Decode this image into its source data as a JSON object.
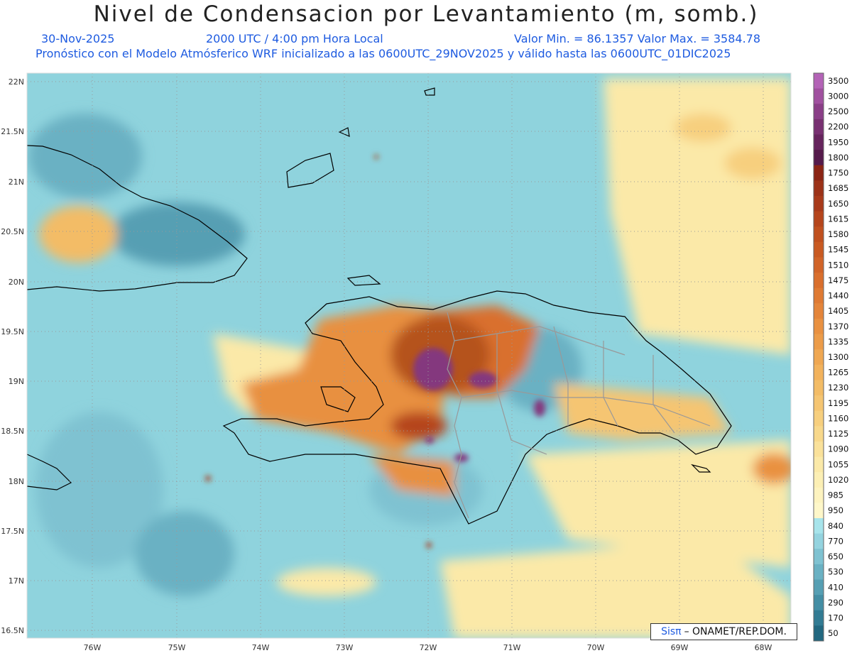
{
  "title": "Nivel de Condensacion por Levantamiento (m, somb.)",
  "header": {
    "date": "30-Nov-2025",
    "time": "2000 UTC / 4:00 pm Hora Local",
    "minmax": "Valor Min. = 86.1357  Valor Max. = 3584.78",
    "subtitle": "Pronóstico con el Modelo Atmósferico WRF inicializado a las 0600UTC_29NOV2025 y válido hasta las  0600UTC_01DIC2025"
  },
  "map": {
    "lat_labels": [
      "22N",
      "21.5N",
      "21N",
      "20.5N",
      "20N",
      "19.5N",
      "19N",
      "18.5N",
      "18N",
      "17.5N",
      "17N",
      "16.5N"
    ],
    "lon_labels": [
      "76W",
      "75W",
      "74W",
      "73W",
      "72W",
      "71W",
      "70W",
      "69W",
      "68W"
    ]
  },
  "colorbar": {
    "labels": [
      "3500",
      "3000",
      "2500",
      "2200",
      "1950",
      "1800",
      "1750",
      "1685",
      "1650",
      "1615",
      "1580",
      "1545",
      "1510",
      "1475",
      "1440",
      "1405",
      "1370",
      "1335",
      "1300",
      "1265",
      "1230",
      "1195",
      "1160",
      "1125",
      "1090",
      "1055",
      "1020",
      "985",
      "950",
      "840",
      "770",
      "650",
      "530",
      "410",
      "290",
      "170",
      "50"
    ],
    "colors": [
      "#b363b6",
      "#a0509f",
      "#8a3e87",
      "#783071",
      "#66245d",
      "#551a4b",
      "#8b2414",
      "#9c3218",
      "#a83a1a",
      "#b5451c",
      "#c0501f",
      "#c95a22",
      "#d16428",
      "#d96f2d",
      "#df7a33",
      "#e4853a",
      "#e99141",
      "#ec9c49",
      "#efa752",
      "#f2b25c",
      "#f3bc66",
      "#f5c572",
      "#f7cf7e",
      "#f8d88b",
      "#fae19a",
      "#fbe9a8",
      "#fcefb4",
      "#fdf3bf",
      "#fef7c9",
      "#a7e4eb",
      "#94d3df",
      "#7fc2d1",
      "#6ab1c3",
      "#569fb3",
      "#448ea4",
      "#327b93",
      "#226880"
    ]
  },
  "credit": {
    "sis": "Sisπ",
    "text": "– ONAMET/REP.DOM."
  },
  "colors": {
    "sea_base": "#8fd3dd",
    "yellow": "#fbe9a8",
    "orange": "#e8903f",
    "brown": "#b5521f",
    "purple": "#84387e",
    "header_blue": "#1e5be0"
  }
}
